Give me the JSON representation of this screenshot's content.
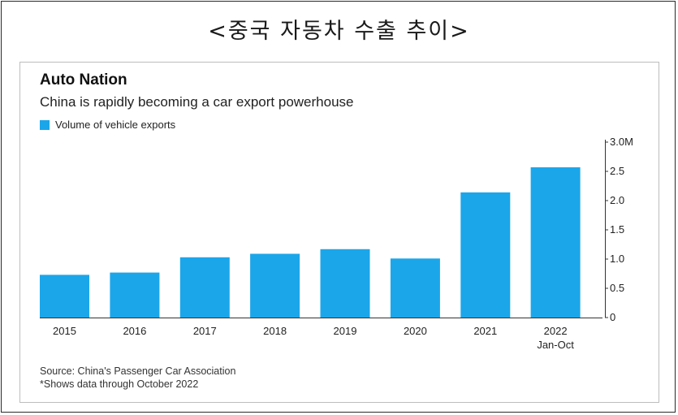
{
  "page": {
    "heading": "<중국 자동차 수출 추이>"
  },
  "chart_data": {
    "type": "bar",
    "title": "Auto Nation",
    "subtitle": "China is rapidly becoming a car export powerhouse",
    "legend": [
      "Volume of vehicle exports"
    ],
    "categories": [
      "2015",
      "2016",
      "2017",
      "2018",
      "2019",
      "2020",
      "2021",
      "2022"
    ],
    "category_sublabels": [
      "",
      "",
      "",
      "",
      "",
      "",
      "",
      "Jan-Oct"
    ],
    "values": [
      0.73,
      0.77,
      1.03,
      1.09,
      1.17,
      1.01,
      2.14,
      2.57
    ],
    "ylim": [
      0,
      3.0
    ],
    "yticks": [
      0,
      0.5,
      1.0,
      1.5,
      2.0,
      2.5,
      3.0
    ],
    "ytick_labels": [
      "0",
      "0.5",
      "1.0",
      "1.5",
      "2.0",
      "2.5",
      "3.0M"
    ],
    "y_axis_side": "right",
    "grid": false,
    "bar_color": "#1ba6ea",
    "xlabel": "",
    "ylabel": ""
  },
  "source": {
    "line1": "Source: China's Passenger Car Association",
    "line2": "*Shows data through October 2022"
  }
}
